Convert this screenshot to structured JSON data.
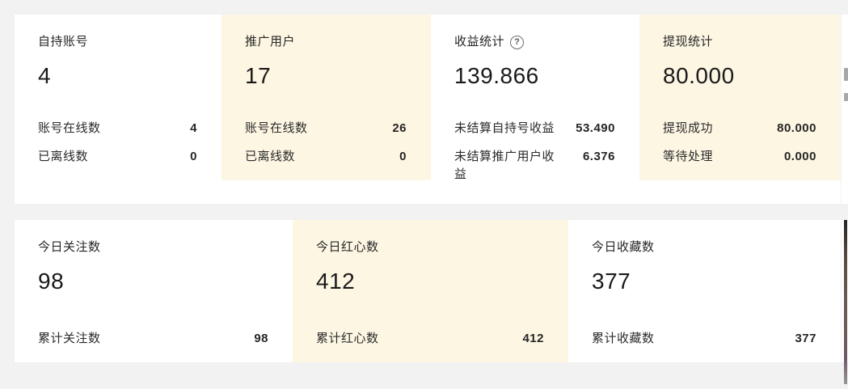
{
  "colors": {
    "page_bg": "#f2f2f2",
    "card_bg": "#ffffff",
    "highlight_bg": "#fdf6e3",
    "title_text": "#262626",
    "value_text": "#1a1a1a"
  },
  "icons": {
    "help": "?"
  },
  "top_cards": [
    {
      "title": "自持账号",
      "value": "4",
      "highlighted": false,
      "stats": [
        {
          "label": "账号在线数",
          "value": "4"
        },
        {
          "label": "已离线数",
          "value": "0"
        }
      ]
    },
    {
      "title": "推广用户",
      "value": "17",
      "highlighted": true,
      "stats": [
        {
          "label": "账号在线数",
          "value": "26"
        },
        {
          "label": "已离线数",
          "value": "0"
        }
      ]
    },
    {
      "title": "收益统计",
      "value": "139.866",
      "highlighted": false,
      "has_help_icon": true,
      "stats": [
        {
          "label": "未结算自持号收益",
          "value": "53.490"
        },
        {
          "label": "未结算推广用户收益",
          "value": "6.376"
        }
      ]
    },
    {
      "title": "提现统计",
      "value": "80.000",
      "highlighted": true,
      "stats": [
        {
          "label": "提现成功",
          "value": "80.000"
        },
        {
          "label": "等待处理",
          "value": "0.000"
        }
      ]
    }
  ],
  "bottom_cards": [
    {
      "title": "今日关注数",
      "value": "98",
      "highlighted": false,
      "stats": [
        {
          "label": "累计关注数",
          "value": "98"
        }
      ]
    },
    {
      "title": "今日红心数",
      "value": "412",
      "highlighted": true,
      "stats": [
        {
          "label": "累计红心数",
          "value": "412"
        }
      ]
    },
    {
      "title": "今日收藏数",
      "value": "377",
      "highlighted": false,
      "stats": [
        {
          "label": "累计收藏数",
          "value": "377"
        }
      ]
    }
  ]
}
